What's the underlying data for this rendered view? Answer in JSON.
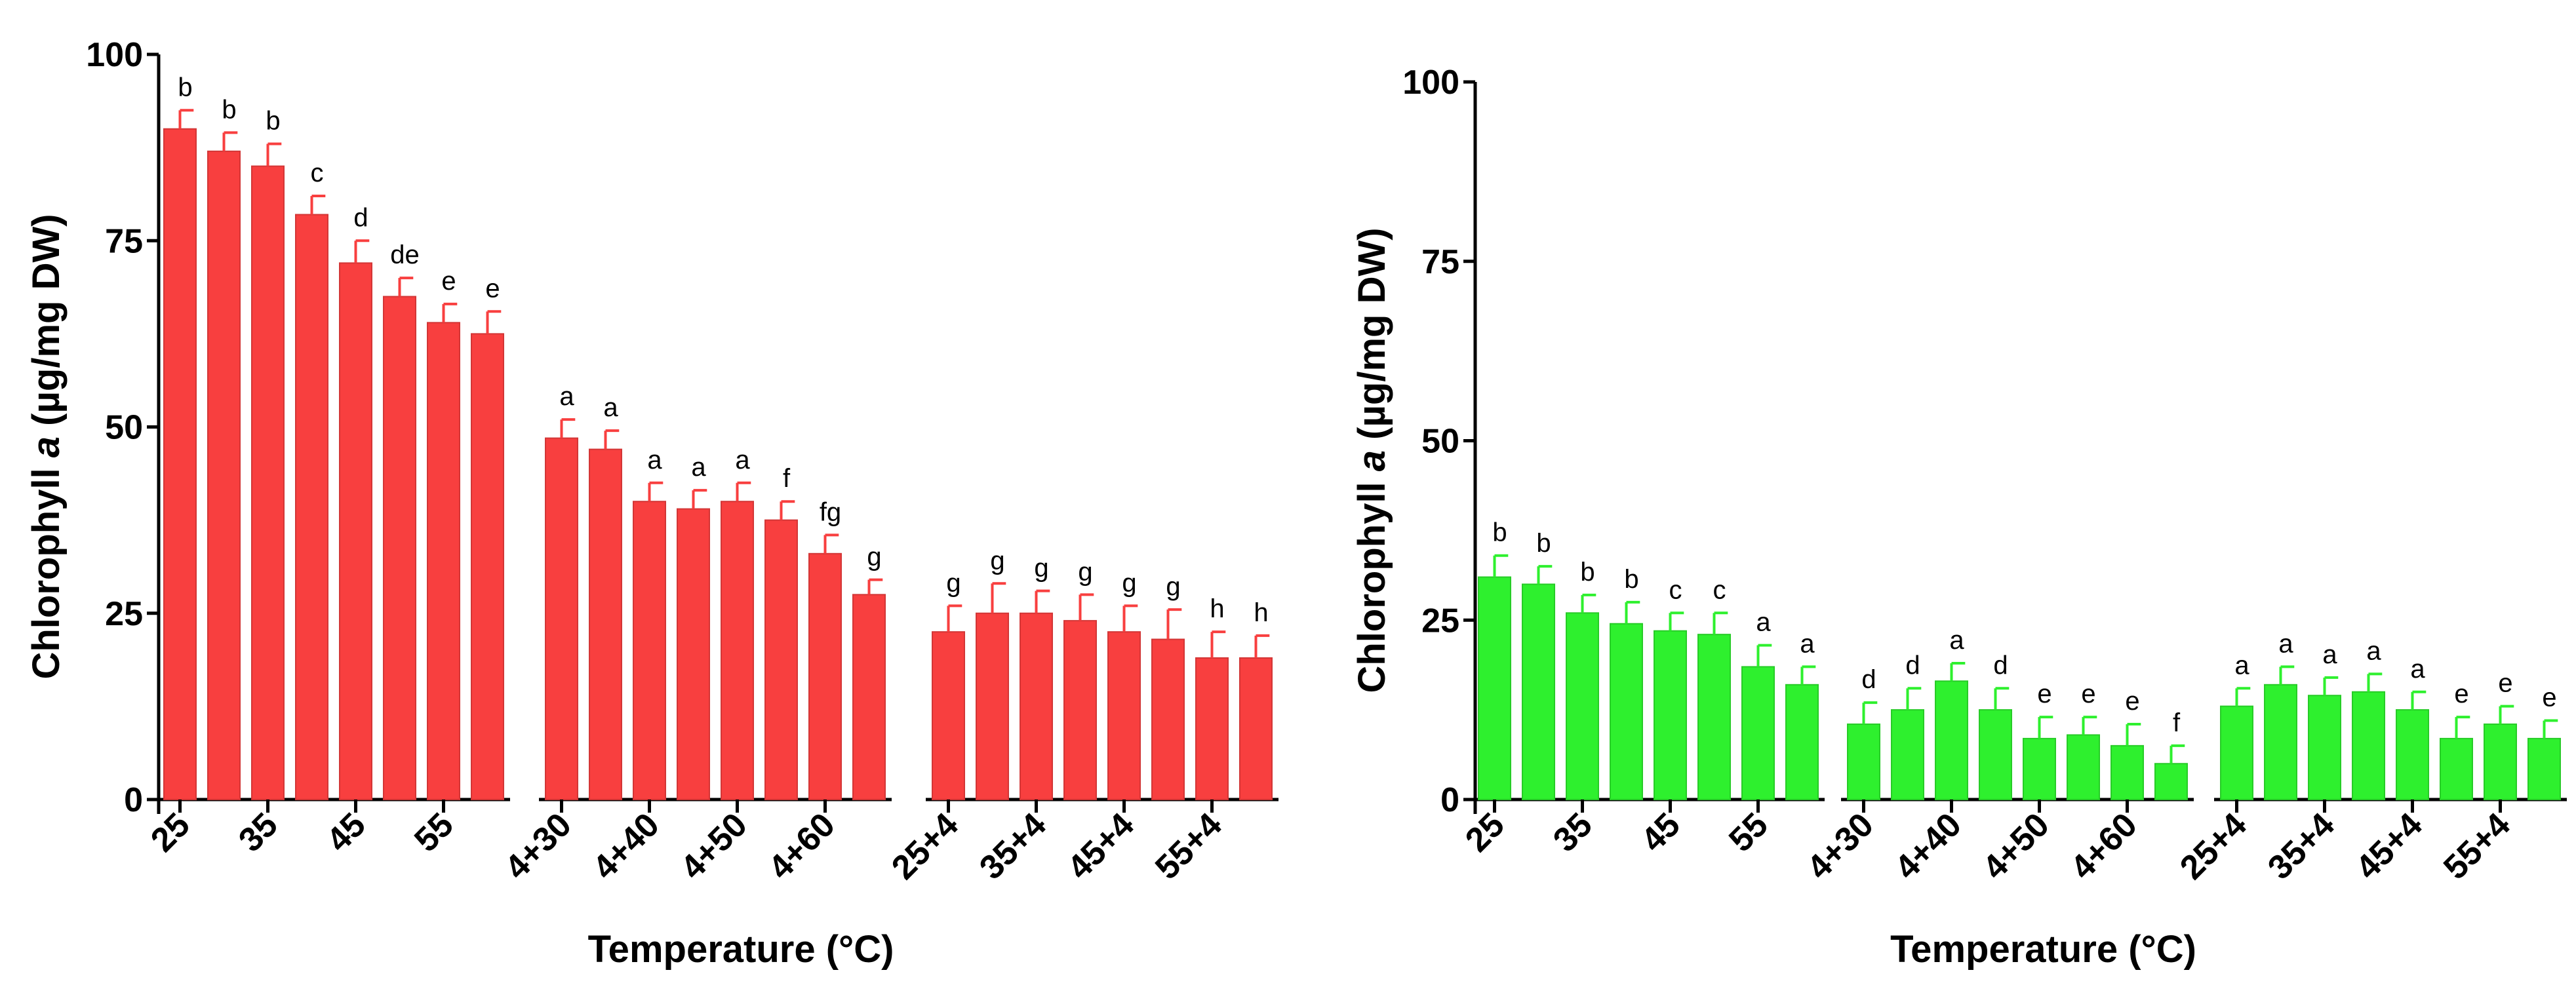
{
  "chart_data": [
    {
      "type": "bar",
      "panel": "left",
      "color": "#f83f3f",
      "xlabel": "Temperature (°C)",
      "ylabel_prefix": "Chlorophyll ",
      "ylabel_italic": "a",
      "ylabel_suffix": " (µg/mg DW)",
      "ylim": [
        0,
        100
      ],
      "yticks": [
        "0",
        "25",
        "50",
        "75",
        "100"
      ],
      "groups": [
        {
          "tick_labels": [
            "25",
            "35",
            "45",
            "55"
          ],
          "values": [
            90,
            87,
            85,
            78.5,
            72,
            67.5,
            64,
            62.5
          ],
          "errors": [
            2.5,
            2.5,
            3,
            2.5,
            3,
            2.5,
            2.5,
            3
          ],
          "sig_letters": [
            "b",
            "b",
            "b",
            "c",
            "d",
            "de",
            "e",
            "e"
          ]
        },
        {
          "tick_labels": [
            "4+30",
            "4+40",
            "4+50",
            "4+60"
          ],
          "values": [
            48.5,
            47,
            40,
            39,
            40,
            37.5,
            33,
            27.5
          ],
          "errors": [
            2.5,
            2.5,
            2.5,
            2.5,
            2.5,
            2.5,
            2.5,
            2
          ],
          "sig_letters": [
            "a",
            "a",
            "a",
            "a",
            "a",
            "f",
            "fg",
            "g"
          ]
        },
        {
          "tick_labels": [
            "25+4",
            "35+4",
            "45+4",
            "55+4"
          ],
          "values": [
            22.5,
            25,
            25,
            24,
            22.5,
            21.5,
            19,
            19
          ],
          "errors": [
            3.5,
            4,
            3,
            3.5,
            3.5,
            4,
            3.5,
            3
          ],
          "sig_letters": [
            "g",
            "g",
            "g",
            "g",
            "g",
            "g",
            "h",
            "h"
          ]
        }
      ]
    },
    {
      "type": "bar",
      "panel": "right",
      "color": "#2ef02e",
      "xlabel": "Temperature (°C)",
      "ylabel_prefix": "Chlorophyll ",
      "ylabel_italic": "a",
      "ylabel_suffix": " (µg/mg DW)",
      "ylim": [
        0,
        100
      ],
      "yticks": [
        "0",
        "25",
        "50",
        "75",
        "100"
      ],
      "groups": [
        {
          "tick_labels": [
            "25",
            "35",
            "45",
            "55"
          ],
          "values": [
            31,
            30,
            26,
            24.5,
            23.5,
            23,
            18.5,
            16
          ],
          "errors": [
            3,
            2.5,
            2.5,
            3,
            2.5,
            3,
            3,
            2.5
          ],
          "sig_letters": [
            "b",
            "b",
            "b",
            "b",
            "c",
            "c",
            "a",
            "a"
          ]
        },
        {
          "tick_labels": [
            "4+30",
            "4+40",
            "4+50",
            "4+60"
          ],
          "values": [
            10.5,
            12.5,
            16.5,
            12.5,
            8.5,
            9,
            7.5,
            5
          ],
          "errors": [
            3,
            3,
            2.5,
            3,
            3,
            2.5,
            3,
            2.5
          ],
          "sig_letters": [
            "d",
            "d",
            "a",
            "d",
            "e",
            "e",
            "e",
            "f"
          ]
        },
        {
          "tick_labels": [
            "25+4",
            "35+4",
            "45+4",
            "55+4"
          ],
          "values": [
            13,
            16,
            14.5,
            15,
            12.5,
            8.5,
            10.5,
            8.5
          ],
          "errors": [
            2.5,
            2.5,
            2.5,
            2.5,
            2.5,
            3,
            2.5,
            2.5
          ],
          "sig_letters": [
            "a",
            "a",
            "a",
            "a",
            "a",
            "e",
            "e",
            "e"
          ]
        }
      ]
    }
  ]
}
